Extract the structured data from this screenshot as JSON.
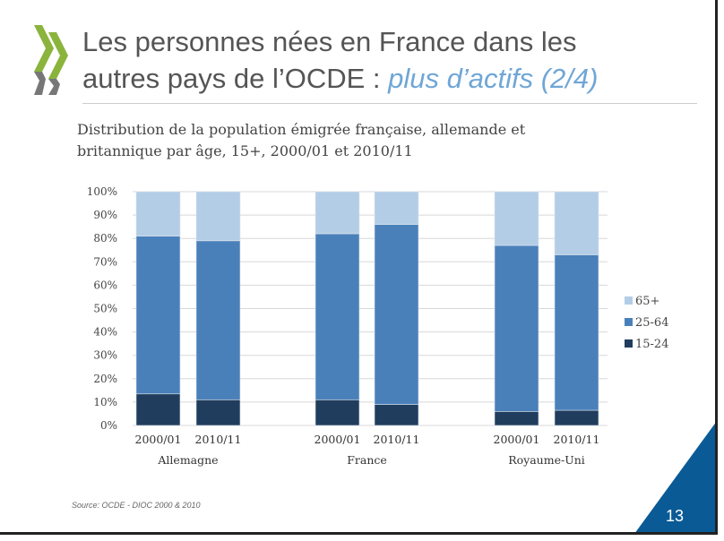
{
  "header": {
    "title_line1": "Les personnes nées en France dans les",
    "title_line2_plain": "autres pays de l’OCDE : ",
    "title_line2_accent": "plus d’actifs (2/4)"
  },
  "footer": {
    "source": "Source:  OCDE - DIOC 2000 & 2010",
    "page_number": "13"
  },
  "colors": {
    "c65": "#b4cde6",
    "c2564": "#4a80ba",
    "c1524": "#213d5e",
    "brand": "#0a5a96",
    "logo_green": "#8ab43c",
    "logo_gray": "#777777"
  },
  "chart_data": {
    "type": "bar",
    "stacked": true,
    "title": "Distribution de la population émigrée française, allemande et britannique par âge, 15+, 2000/01 et 2010/11",
    "groups": [
      "Allemagne",
      "France",
      "Royaume-Uni"
    ],
    "categories": [
      "2000/01",
      "2010/11",
      "2000/01",
      "2010/11",
      "2000/01",
      "2010/11"
    ],
    "series": [
      {
        "name": "15-24",
        "values": [
          13.5,
          11,
          11,
          9,
          6,
          6.5
        ]
      },
      {
        "name": "25-64",
        "values": [
          67.5,
          68,
          71,
          77,
          71,
          66.5
        ]
      },
      {
        "name": "65+",
        "values": [
          19,
          21,
          18,
          14,
          23,
          27
        ]
      }
    ],
    "ylim": [
      0,
      100
    ],
    "yticks": [
      "0%",
      "10%",
      "20%",
      "30%",
      "40%",
      "50%",
      "60%",
      "70%",
      "80%",
      "90%",
      "100%"
    ],
    "grid": true,
    "legend": [
      "65+",
      "25-64",
      "15-24"
    ],
    "legend_position": "right"
  }
}
